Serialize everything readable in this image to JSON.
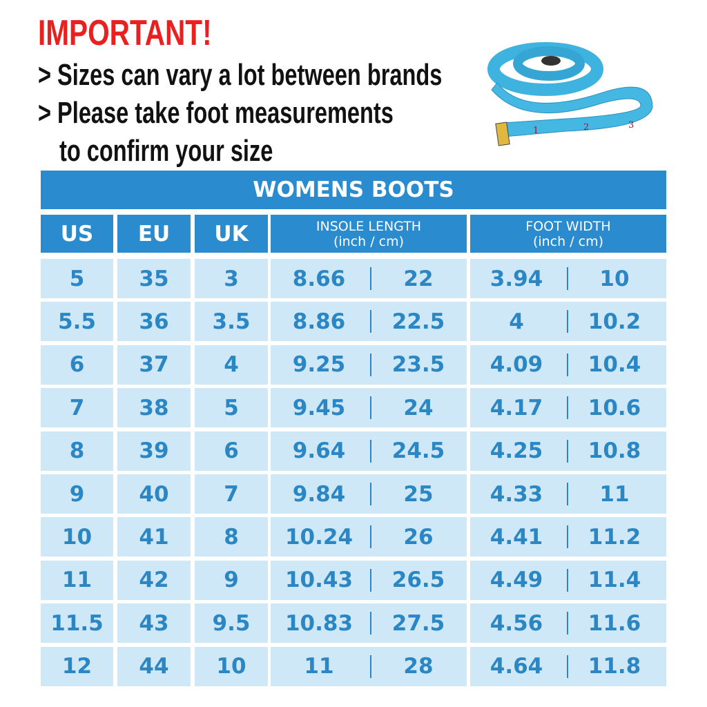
{
  "header": {
    "title": "IMPORTANT!",
    "lines": [
      "> Sizes can vary a lot between brands",
      "> Please take foot measurements",
      "to confirm your size"
    ]
  },
  "table": {
    "title": "WOMENS BOOTS",
    "columns": [
      {
        "label": "US"
      },
      {
        "label": "EU"
      },
      {
        "label": "UK"
      },
      {
        "label": "INSOLE LENGTH",
        "sublabel": "(inch / cm)"
      },
      {
        "label": "FOOT WIDTH",
        "sublabel": "(inch / cm)"
      }
    ],
    "rows": [
      [
        "5",
        "35",
        "3",
        "8.66",
        "22",
        "3.94",
        "10"
      ],
      [
        "5.5",
        "36",
        "3.5",
        "8.86",
        "22.5",
        "4",
        "10.2"
      ],
      [
        "6",
        "37",
        "4",
        "9.25",
        "23.5",
        "4.09",
        "10.4"
      ],
      [
        "7",
        "38",
        "5",
        "9.45",
        "24",
        "4.17",
        "10.6"
      ],
      [
        "8",
        "39",
        "6",
        "9.64",
        "24.5",
        "4.25",
        "10.8"
      ],
      [
        "9",
        "40",
        "7",
        "9.84",
        "25",
        "4.33",
        "11"
      ],
      [
        "10",
        "41",
        "8",
        "10.24",
        "26",
        "4.41",
        "11.2"
      ],
      [
        "11",
        "42",
        "9",
        "10.43",
        "26.5",
        "4.49",
        "11.4"
      ],
      [
        "11.5",
        "43",
        "9.5",
        "10.83",
        "27.5",
        "4.56",
        "11.6"
      ],
      [
        "12",
        "44",
        "10",
        "11",
        "28",
        "4.64",
        "11.8"
      ]
    ]
  }
}
